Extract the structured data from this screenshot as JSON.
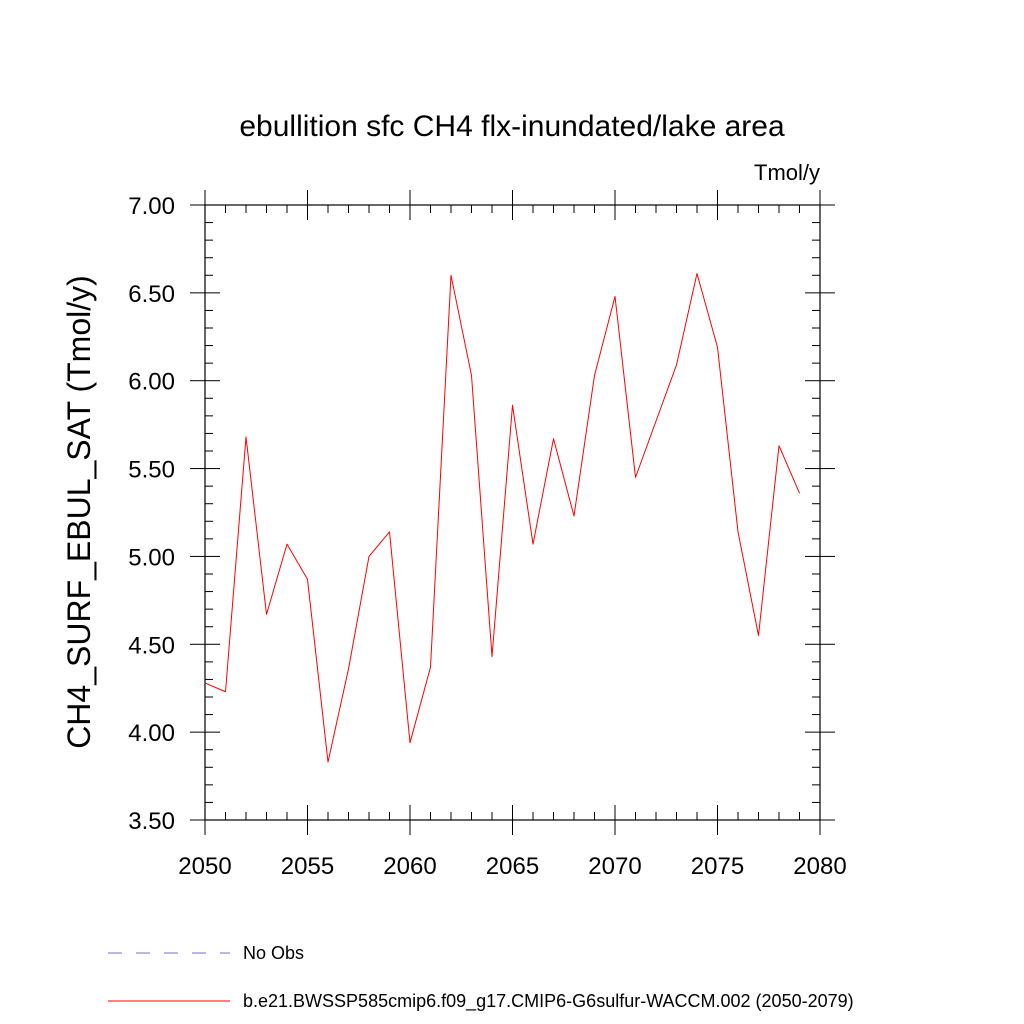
{
  "chart_data": {
    "type": "line",
    "title": "ebullition sfc CH4 flx-inundated/lake area",
    "units": "Tmol/y",
    "ylabel": "CH4_SURF_EBUL_SAT  (Tmol/y)",
    "xlabel": "",
    "xlim": [
      2050,
      2080
    ],
    "ylim": [
      3.5,
      7.0
    ],
    "x_ticks": [
      "2050",
      "2055",
      "2060",
      "2065",
      "2070",
      "2075",
      "2080"
    ],
    "y_ticks": [
      "3.50",
      "4.00",
      "4.50",
      "5.00",
      "5.50",
      "6.00",
      "6.50",
      "7.00"
    ],
    "grid": false,
    "legend_position": "bottom",
    "series": [
      {
        "name": "b.e21.BWSSP585cmip6.f09_g17.CMIP6-G6sulfur-WACCM.002 (2050-2079)",
        "color": "#ff0000",
        "x": [
          2050,
          2051,
          2052,
          2053,
          2054,
          2055,
          2056,
          2057,
          2058,
          2059,
          2060,
          2061,
          2062,
          2063,
          2064,
          2065,
          2066,
          2067,
          2068,
          2069,
          2070,
          2071,
          2072,
          2073,
          2074,
          2075,
          2076,
          2077,
          2078,
          2079
        ],
        "values": [
          4.28,
          4.23,
          5.68,
          4.67,
          5.07,
          4.87,
          3.83,
          4.36,
          5.0,
          5.14,
          3.94,
          4.37,
          6.6,
          6.03,
          4.43,
          5.86,
          5.07,
          5.67,
          5.23,
          6.03,
          6.48,
          5.45,
          5.77,
          6.09,
          6.61,
          6.19,
          5.14,
          4.55,
          5.63,
          5.36
        ]
      }
    ],
    "legend": [
      {
        "label": "No Obs",
        "color": "#7a6fc0",
        "dash": "dashed"
      },
      {
        "label": "b.e21.BWSSP585cmip6.f09_g17.CMIP6-G6sulfur-WACCM.002 (2050-2079)",
        "color": "#ff0000",
        "dash": "solid"
      }
    ]
  }
}
